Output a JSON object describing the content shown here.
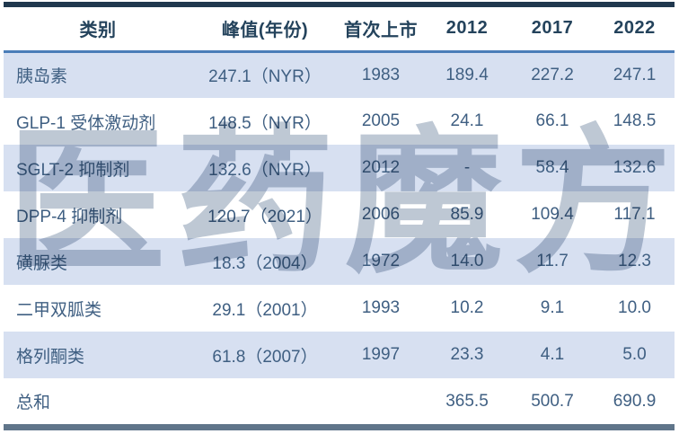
{
  "chart_data": {
    "type": "table",
    "title": "",
    "columns": [
      "类别",
      "峰值(年份)",
      "首次上市",
      "2012",
      "2017",
      "2022"
    ],
    "rows": [
      [
        "胰岛素",
        "247.1（NYR）",
        "1983",
        "189.4",
        "227.2",
        "247.1"
      ],
      [
        "GLP-1 受体激动剂",
        "148.5（NYR）",
        "2005",
        "24.1",
        "66.1",
        "148.5"
      ],
      [
        "SGLT-2 抑制剂",
        "132.6（NYR）",
        "2012",
        "-",
        "58.4",
        "132.6"
      ],
      [
        "DPP-4 抑制剂",
        "120.7（2021）",
        "2006",
        "85.9",
        "109.4",
        "117.1"
      ],
      [
        "磺脲类",
        "18.3（2004）",
        "1972",
        "14.0",
        "11.7",
        "12.3"
      ],
      [
        "二甲双胍类",
        "29.1（2001）",
        "1993",
        "10.2",
        "9.1",
        "10.0"
      ],
      [
        "格列酮类",
        "61.8（2007）",
        "1997",
        "23.3",
        "4.1",
        "5.0"
      ],
      [
        "总和",
        "",
        "",
        "365.5",
        "500.7",
        "690.9"
      ]
    ],
    "watermark": "医药魔方",
    "layout": {
      "striped_rows": "1st, 3rd, 5th, 7th data rows light blue",
      "legend": "none",
      "grid": "off"
    },
    "colors": {
      "top_border": "#20384e",
      "bottom_border": "#60758a",
      "header_rule": "#4a7db8",
      "stripe_bg": "#d7e0f1",
      "header_text": "#24435c",
      "body_text": "#3f5f82",
      "watermark": "#8fa0b5"
    }
  }
}
